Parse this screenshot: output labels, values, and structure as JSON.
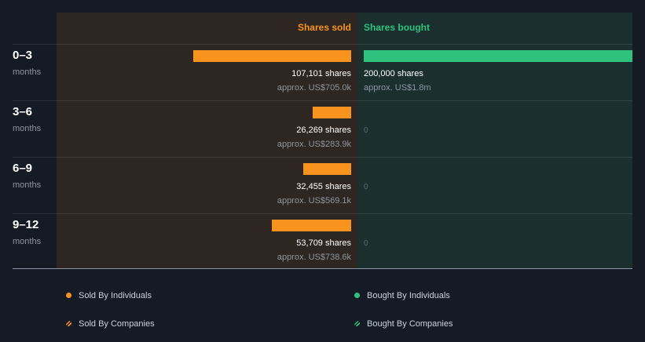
{
  "headers": {
    "sold": "Shares sold",
    "bought": "Shares bought"
  },
  "colors": {
    "sold": "#f7931e",
    "bought": "#2ec27e",
    "sold_panel": "#2e2620",
    "bought_panel": "#1b302e",
    "background": "#151b24"
  },
  "rows": [
    {
      "period": "0–3",
      "unit": "months",
      "sold_shares": 107101,
      "sold_label": "107,101 shares",
      "sold_value": "approx. US$705.0k",
      "bought_shares": 200000,
      "bought_label": "200,000 shares",
      "bought_value": "approx. US$1.8m"
    },
    {
      "period": "3–6",
      "unit": "months",
      "sold_shares": 26269,
      "sold_label": "26,269 shares",
      "sold_value": "approx. US$283.9k",
      "bought_shares": 0,
      "bought_label": "0",
      "bought_value": ""
    },
    {
      "period": "6–9",
      "unit": "months",
      "sold_shares": 32455,
      "sold_label": "32,455 shares",
      "sold_value": "approx. US$569.1k",
      "bought_shares": 0,
      "bought_label": "0",
      "bought_value": ""
    },
    {
      "period": "9–12",
      "unit": "months",
      "sold_shares": 53709,
      "sold_label": "53,709 shares",
      "sold_value": "approx. US$738.6k",
      "bought_shares": 0,
      "bought_label": "0",
      "bought_value": ""
    }
  ],
  "legend": {
    "sold_individuals": "Sold By Individuals",
    "bought_individuals": "Bought By Individuals",
    "sold_companies": "Sold By Companies",
    "bought_companies": "Bought By Companies"
  },
  "chart_data": {
    "type": "bar",
    "orientation": "horizontal-diverging",
    "categories": [
      "0–3 months",
      "3–6 months",
      "6–9 months",
      "9–12 months"
    ],
    "series": [
      {
        "name": "Shares sold",
        "values": [
          107101,
          26269,
          32455,
          53709
        ]
      },
      {
        "name": "Shares bought",
        "values": [
          200000,
          0,
          0,
          0
        ]
      }
    ],
    "value_labels_sold": [
      "approx. US$705.0k",
      "approx. US$283.9k",
      "approx. US$569.1k",
      "approx. US$738.6k"
    ],
    "value_labels_bought": [
      "approx. US$1.8m",
      "",
      "",
      ""
    ],
    "legend": [
      "Sold By Individuals",
      "Bought By Individuals",
      "Sold By Companies",
      "Bought By Companies"
    ]
  }
}
